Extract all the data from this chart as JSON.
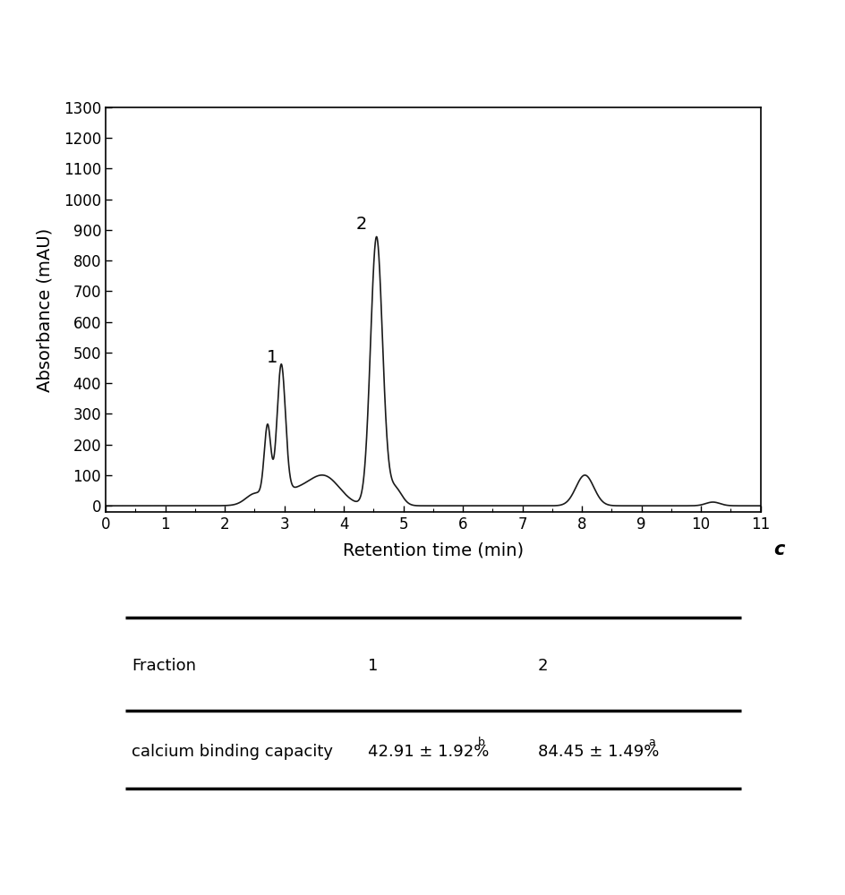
{
  "title": "",
  "xlabel": "Retention time (min)",
  "ylabel": "Absorbance (mAU)",
  "xlim": [
    0,
    11
  ],
  "ylim": [
    -20,
    1300
  ],
  "yticks": [
    0,
    100,
    200,
    300,
    400,
    500,
    600,
    700,
    800,
    900,
    1000,
    1100,
    1200,
    1300
  ],
  "xticks": [
    0,
    1,
    2,
    3,
    4,
    5,
    6,
    7,
    8,
    9,
    10,
    11
  ],
  "label_c": "c",
  "peak1_label": "1",
  "peak2_label": "2",
  "peak1_x": 2.95,
  "peak1_y": 420,
  "peak2_x": 4.55,
  "peak2_y": 875,
  "line_color": "#1a1a1a",
  "background_color": "#ffffff",
  "table_header": [
    "Fraction",
    "1",
    "2"
  ],
  "table_row_label": "calcium binding capacity",
  "table_val1_main": "42.91 ± 1.92%",
  "table_val1_sup": "b",
  "table_val2_main": "84.45 ± 1.49%",
  "table_val2_sup": "a"
}
